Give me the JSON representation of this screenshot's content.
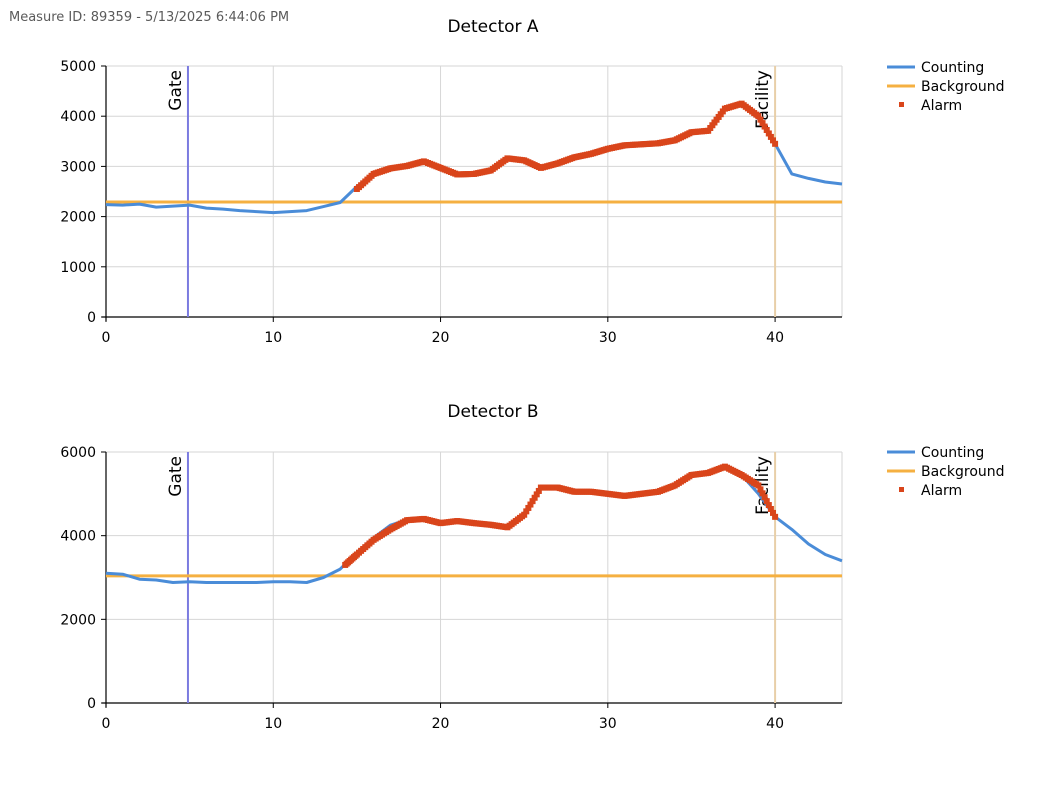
{
  "header": {
    "text": "Measure ID: 89359 - 5/13/2025 6:44:06 PM"
  },
  "legend": [
    "Counting",
    "Background",
    "Alarm"
  ],
  "colors": {
    "counting": "#4a8cd8",
    "background": "#f5b041",
    "alarm": "#d9451b",
    "gate": "#7b7be0",
    "facility": "#e8cfa8",
    "grid": "#d6d6d6"
  },
  "chart_data": [
    {
      "type": "line",
      "title": "Detector A",
      "xlim": [
        0,
        44
      ],
      "ylim": [
        0,
        5000
      ],
      "xticks": [
        0,
        10,
        20,
        30,
        40
      ],
      "yticks": [
        0,
        1000,
        2000,
        3000,
        4000,
        5000
      ],
      "markers": [
        {
          "label": "Gate",
          "x": 4.9
        },
        {
          "label": "Facility",
          "x": 40
        }
      ],
      "background": 2290,
      "series": [
        {
          "name": "Counting",
          "x": [
            0,
            1,
            2,
            3,
            4,
            5,
            6,
            7,
            8,
            9,
            10,
            11,
            12,
            13,
            14,
            15,
            16,
            17,
            18,
            19,
            20,
            21,
            22,
            23,
            24,
            25,
            26,
            27,
            28,
            29,
            30,
            31,
            32,
            33,
            34,
            35,
            36,
            37,
            38,
            39,
            40,
            41,
            42,
            43,
            44
          ],
          "y": [
            2240,
            2230,
            2250,
            2190,
            2210,
            2230,
            2170,
            2150,
            2120,
            2100,
            2080,
            2100,
            2120,
            2200,
            2280,
            2600,
            2840,
            2960,
            3010,
            3080,
            2980,
            2850,
            2850,
            2950,
            3150,
            3120,
            2980,
            3060,
            3180,
            3250,
            3350,
            3420,
            3440,
            3450,
            3500,
            3650,
            3720,
            4150,
            4250,
            3950,
            3450,
            2850,
            2760,
            2690,
            2650
          ]
        },
        {
          "name": "Alarm",
          "x": [
            15,
            16,
            17,
            18,
            19,
            20,
            21,
            22,
            23,
            24,
            25,
            26,
            27,
            28,
            29,
            30,
            31,
            32,
            33,
            34,
            35,
            36,
            37,
            38,
            39,
            40
          ],
          "y": [
            2550,
            2850,
            2960,
            3010,
            3100,
            2970,
            2840,
            2850,
            2920,
            3160,
            3120,
            2970,
            3060,
            3180,
            3250,
            3350,
            3420,
            3440,
            3460,
            3520,
            3680,
            3710,
            4150,
            4250,
            4000,
            3450
          ]
        }
      ]
    },
    {
      "type": "line",
      "title": "Detector B",
      "xlim": [
        0,
        44
      ],
      "ylim": [
        0,
        6000
      ],
      "xticks": [
        0,
        10,
        20,
        30,
        40
      ],
      "yticks": [
        0,
        2000,
        4000,
        6000
      ],
      "markers": [
        {
          "label": "Gate",
          "x": 4.9
        },
        {
          "label": "Facility",
          "x": 40
        }
      ],
      "background": 3040,
      "series": [
        {
          "name": "Counting",
          "x": [
            0,
            1,
            2,
            3,
            4,
            5,
            6,
            7,
            8,
            9,
            10,
            11,
            12,
            13,
            14,
            15,
            16,
            17,
            18,
            19,
            20,
            21,
            22,
            23,
            24,
            25,
            26,
            27,
            28,
            29,
            30,
            31,
            32,
            33,
            34,
            35,
            36,
            37,
            38,
            39,
            40,
            41,
            42,
            43,
            44
          ],
          "y": [
            3100,
            3080,
            2960,
            2940,
            2880,
            2900,
            2880,
            2880,
            2880,
            2880,
            2900,
            2900,
            2880,
            3000,
            3200,
            3600,
            3950,
            4250,
            4380,
            4400,
            4300,
            4350,
            4300,
            4250,
            4200,
            4550,
            5150,
            5150,
            5050,
            5050,
            5000,
            4950,
            5000,
            5050,
            5200,
            5450,
            5500,
            5650,
            5450,
            5000,
            4450,
            4150,
            3800,
            3550,
            3400
          ]
        },
        {
          "name": "Alarm",
          "x": [
            14.3,
            15,
            16,
            17,
            18,
            19,
            20,
            21,
            22,
            23,
            24,
            25,
            26,
            27,
            28,
            29,
            30,
            31,
            32,
            33,
            34,
            35,
            36,
            37,
            38,
            39,
            40
          ],
          "y": [
            3300,
            3550,
            3900,
            4150,
            4370,
            4400,
            4300,
            4350,
            4300,
            4260,
            4200,
            4500,
            5150,
            5150,
            5050,
            5050,
            5000,
            4950,
            5000,
            5050,
            5200,
            5450,
            5500,
            5650,
            5450,
            5200,
            4450
          ]
        }
      ]
    }
  ]
}
